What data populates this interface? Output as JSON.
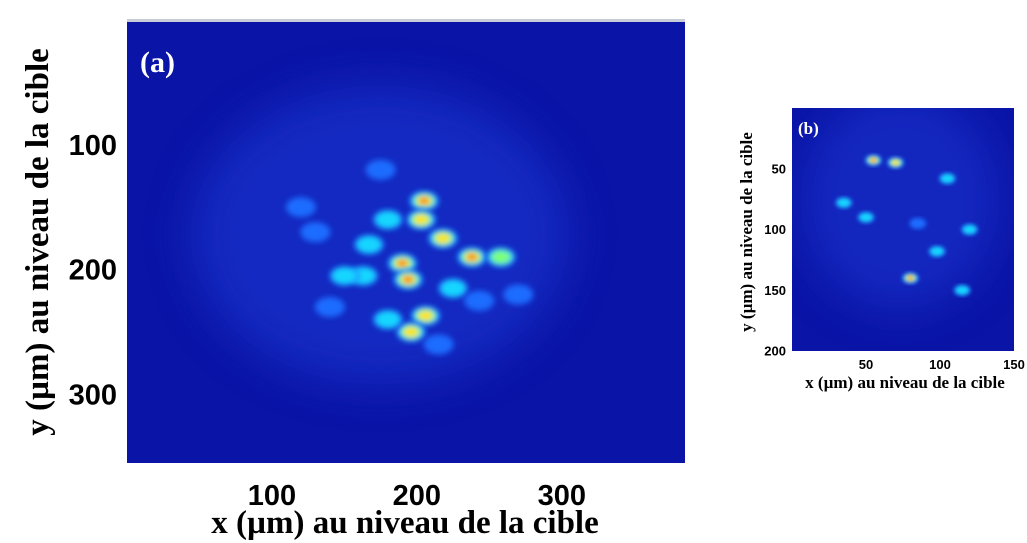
{
  "chart_data": [
    {
      "type": "heatmap",
      "panel_label": "(a)",
      "xlabel": "x (µm) au niveau de la cible",
      "ylabel": "y (µm) au niveau de la cible",
      "x_ticks": [
        "100",
        "200",
        "300"
      ],
      "y_ticks": [
        "100",
        "200",
        "300"
      ],
      "xlim": [
        0,
        385
      ],
      "ylim": [
        0,
        355
      ],
      "y_axis_inverted": true,
      "colormap": "jet",
      "background_color": "#0a14a6",
      "hotspots": [
        {
          "x": 205,
          "y": 145,
          "intensity": 0.9
        },
        {
          "x": 203,
          "y": 160,
          "intensity": 0.85
        },
        {
          "x": 190,
          "y": 195,
          "intensity": 1.0
        },
        {
          "x": 194,
          "y": 208,
          "intensity": 0.95
        },
        {
          "x": 218,
          "y": 175,
          "intensity": 0.85
        },
        {
          "x": 238,
          "y": 190,
          "intensity": 0.9
        },
        {
          "x": 258,
          "y": 190,
          "intensity": 0.75
        },
        {
          "x": 206,
          "y": 237,
          "intensity": 0.8
        },
        {
          "x": 196,
          "y": 250,
          "intensity": 0.8
        },
        {
          "x": 163,
          "y": 205,
          "intensity": 0.6
        },
        {
          "x": 167,
          "y": 180,
          "intensity": 0.55
        },
        {
          "x": 150,
          "y": 205,
          "intensity": 0.45
        },
        {
          "x": 225,
          "y": 215,
          "intensity": 0.5
        },
        {
          "x": 243,
          "y": 225,
          "intensity": 0.4
        },
        {
          "x": 180,
          "y": 160,
          "intensity": 0.5
        },
        {
          "x": 130,
          "y": 170,
          "intensity": 0.4
        },
        {
          "x": 120,
          "y": 150,
          "intensity": 0.35
        },
        {
          "x": 140,
          "y": 230,
          "intensity": 0.35
        },
        {
          "x": 270,
          "y": 220,
          "intensity": 0.4
        },
        {
          "x": 180,
          "y": 240,
          "intensity": 0.45
        },
        {
          "x": 215,
          "y": 260,
          "intensity": 0.4
        },
        {
          "x": 175,
          "y": 120,
          "intensity": 0.35
        }
      ]
    },
    {
      "type": "heatmap",
      "panel_label": "(b)",
      "xlabel": "x (µm) au niveau de la cible",
      "ylabel": "y (µm) au niveau de la cible",
      "x_ticks": [
        "50",
        "100",
        "150"
      ],
      "y_ticks": [
        "50",
        "100",
        "150",
        "200"
      ],
      "xlim": [
        0,
        150
      ],
      "ylim": [
        0,
        200
      ],
      "y_axis_inverted": true,
      "colormap": "jet",
      "background_color": "#0a14a6",
      "hotspots": [
        {
          "x": 55,
          "y": 43,
          "intensity": 1.0
        },
        {
          "x": 70,
          "y": 45,
          "intensity": 0.85
        },
        {
          "x": 80,
          "y": 140,
          "intensity": 0.95
        },
        {
          "x": 105,
          "y": 58,
          "intensity": 0.6
        },
        {
          "x": 98,
          "y": 118,
          "intensity": 0.55
        },
        {
          "x": 35,
          "y": 78,
          "intensity": 0.5
        },
        {
          "x": 50,
          "y": 90,
          "intensity": 0.5
        },
        {
          "x": 120,
          "y": 100,
          "intensity": 0.45
        },
        {
          "x": 115,
          "y": 150,
          "intensity": 0.45
        },
        {
          "x": 85,
          "y": 95,
          "intensity": 0.4
        }
      ]
    }
  ]
}
